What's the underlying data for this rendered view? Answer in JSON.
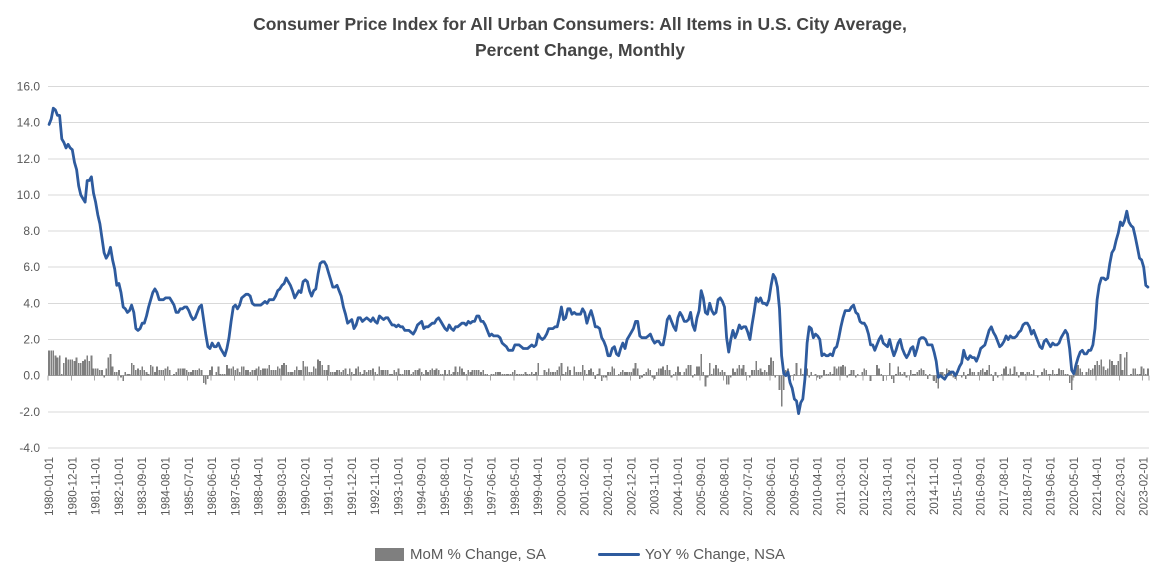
{
  "title": {
    "line1": "Consumer Price Index for All Urban Consumers: All Items in U.S. City Average,",
    "line2": "Percent Change, Monthly"
  },
  "legend": [
    {
      "label": "MoM % Change, SA",
      "swatch": "bar-swatch",
      "color": "#7f7f7f"
    },
    {
      "label": "YoY % Change, NSA",
      "swatch": "line-swatch",
      "color": "#2e5b9e"
    }
  ],
  "colors": {
    "bar": "#7f7f7f",
    "line": "#2e5b9e",
    "gridline": "#d9d9d9",
    "axis": "#a6a6a6",
    "axis_text": "#595959",
    "title_text": "#444444"
  },
  "chart_data": {
    "type": "combo",
    "title": "Consumer Price Index for All Urban Consumers: All Items in U.S. City Average, Percent Change, Monthly",
    "frequency": "monthly",
    "start": "1980-01-01",
    "end": "2023-04-01",
    "ylim": [
      -4,
      16
    ],
    "y_ticks": [
      16,
      14,
      12,
      10,
      8,
      6,
      4,
      2,
      0,
      -2,
      -4
    ],
    "grid": "horizontal",
    "legend_position": "bottom",
    "x_tick_interval_months": 11,
    "x_tick_labels": [
      "1980-01-01",
      "1980-12-01",
      "1981-11-01",
      "1982-10-01",
      "1983-09-01",
      "1984-08-01",
      "1985-07-01",
      "1986-06-01",
      "1987-05-01",
      "1988-04-01",
      "1989-03-01",
      "1990-02-01",
      "1991-01-01",
      "1991-12-01",
      "1992-11-01",
      "1993-10-01",
      "1994-09-01",
      "1995-08-01",
      "1996-07-01",
      "1997-06-01",
      "1998-05-01",
      "1999-04-01",
      "2000-03-01",
      "2001-02-01",
      "2002-01-01",
      "2002-12-01",
      "2003-11-01",
      "2004-10-01",
      "2005-09-01",
      "2006-08-01",
      "2007-07-01",
      "2008-06-01",
      "2009-05-01",
      "2010-04-01",
      "2011-03-01",
      "2012-02-01",
      "2013-01-01",
      "2013-12-01",
      "2014-11-01",
      "2015-10-01",
      "2016-09-01",
      "2017-08-01",
      "2018-07-01",
      "2019-06-01",
      "2020-05-01",
      "2021-04-01",
      "2022-03-01",
      "2023-02-01"
    ],
    "series": [
      {
        "name": "MoM % Change, SA",
        "type": "bar",
        "color": "#7f7f7f",
        "values": [
          1.4,
          1.4,
          1.4,
          1.1,
          1.0,
          1.1,
          0.1,
          0.7,
          1.0,
          0.9,
          0.9,
          0.9,
          0.8,
          1.0,
          0.7,
          0.7,
          0.8,
          0.9,
          1.1,
          0.8,
          1.1,
          0.4,
          0.4,
          0.4,
          0.3,
          0.3,
          -0.1,
          0.4,
          1.0,
          1.2,
          0.5,
          0.2,
          0.2,
          0.3,
          -0.1,
          -0.3,
          0.2,
          0.1,
          0.1,
          0.7,
          0.6,
          0.3,
          0.4,
          0.3,
          0.5,
          0.3,
          0.2,
          0.1,
          0.6,
          0.5,
          0.2,
          0.5,
          0.3,
          0.3,
          0.3,
          0.4,
          0.5,
          0.3,
          0.0,
          0.1,
          0.2,
          0.4,
          0.4,
          0.4,
          0.4,
          0.3,
          0.2,
          0.2,
          0.3,
          0.3,
          0.3,
          0.4,
          0.3,
          -0.4,
          -0.5,
          -0.2,
          0.3,
          0.5,
          0.0,
          0.2,
          0.5,
          0.1,
          0.1,
          0.1,
          0.6,
          0.4,
          0.4,
          0.5,
          0.3,
          0.4,
          0.2,
          0.5,
          0.5,
          0.3,
          0.3,
          0.2,
          0.3,
          0.3,
          0.4,
          0.5,
          0.3,
          0.4,
          0.4,
          0.4,
          0.6,
          0.3,
          0.3,
          0.3,
          0.5,
          0.4,
          0.6,
          0.7,
          0.6,
          0.2,
          0.2,
          0.2,
          0.3,
          0.5,
          0.3,
          0.3,
          0.8,
          0.5,
          0.5,
          0.2,
          0.2,
          0.5,
          0.4,
          0.9,
          0.8,
          0.6,
          0.3,
          0.3,
          0.6,
          0.2,
          0.2,
          0.2,
          0.3,
          0.3,
          0.2,
          0.3,
          0.4,
          0.1,
          0.4,
          0.2,
          0.1,
          0.4,
          0.5,
          0.2,
          0.1,
          0.3,
          0.2,
          0.3,
          0.3,
          0.4,
          0.2,
          0.1,
          0.5,
          0.3,
          0.3,
          0.3,
          0.3,
          0.1,
          0.1,
          0.3,
          0.2,
          0.4,
          0.1,
          0.1,
          0.3,
          0.3,
          0.3,
          0.1,
          0.2,
          0.3,
          0.3,
          0.4,
          0.2,
          0.1,
          0.3,
          0.2,
          0.3,
          0.4,
          0.3,
          0.4,
          0.3,
          0.1,
          0.1,
          0.3,
          0.1,
          0.3,
          0.1,
          0.2,
          0.5,
          0.2,
          0.5,
          0.4,
          0.2,
          0.1,
          0.3,
          0.2,
          0.3,
          0.3,
          0.3,
          0.3,
          0.2,
          0.3,
          0.1,
          0.1,
          0.0,
          0.1,
          0.1,
          0.2,
          0.2,
          0.2,
          0.1,
          0.1,
          0.1,
          0.1,
          0.1,
          0.2,
          0.3,
          0.1,
          0.1,
          0.1,
          0.1,
          0.2,
          0.1,
          0.1,
          0.2,
          0.1,
          0.2,
          0.7,
          0.0,
          0.0,
          0.3,
          0.2,
          0.4,
          0.2,
          0.2,
          0.2,
          0.3,
          0.5,
          0.7,
          0.1,
          0.2,
          0.5,
          0.3,
          0.0,
          0.5,
          0.2,
          0.2,
          0.2,
          0.6,
          0.3,
          0.1,
          0.3,
          0.4,
          0.2,
          -0.2,
          0.1,
          0.4,
          -0.3,
          -0.1,
          -0.1,
          0.2,
          0.2,
          0.5,
          0.4,
          0.0,
          0.1,
          0.2,
          0.3,
          0.2,
          0.2,
          0.2,
          0.2,
          0.4,
          0.7,
          0.4,
          -0.2,
          -0.1,
          0.1,
          0.2,
          0.4,
          0.3,
          -0.1,
          -0.2,
          0.2,
          0.4,
          0.4,
          0.5,
          0.3,
          0.6,
          0.3,
          -0.1,
          0.1,
          0.2,
          0.5,
          0.2,
          0.0,
          0.2,
          0.4,
          0.6,
          0.6,
          -0.1,
          0.1,
          0.5,
          0.5,
          1.2,
          0.2,
          -0.6,
          -0.1,
          0.7,
          0.1,
          0.4,
          0.6,
          0.4,
          0.2,
          0.3,
          0.2,
          -0.5,
          -0.5,
          -0.1,
          0.4,
          0.2,
          0.4,
          0.6,
          0.4,
          0.6,
          0.2,
          0.0,
          -0.1,
          0.3,
          0.3,
          0.8,
          0.3,
          0.4,
          0.2,
          0.3,
          0.2,
          0.6,
          1.0,
          0.8,
          -0.1,
          0.0,
          -0.8,
          -1.7,
          -0.8,
          0.3,
          0.4,
          -0.1,
          0.0,
          0.1,
          0.7,
          0.0,
          0.4,
          0.1,
          0.3,
          0.4,
          -0.1,
          0.2,
          0.0,
          0.1,
          -0.1,
          -0.2,
          -0.1,
          0.3,
          0.1,
          0.1,
          0.2,
          0.1,
          0.5,
          0.4,
          0.5,
          0.5,
          0.6,
          0.5,
          -0.1,
          0.1,
          0.3,
          0.3,
          -0.1,
          0.1,
          0.0,
          0.2,
          0.4,
          0.3,
          0.0,
          -0.3,
          0.0,
          0.0,
          0.6,
          0.4,
          0.1,
          -0.3,
          0.0,
          0.0,
          0.7,
          -0.2,
          -0.4,
          0.1,
          0.5,
          0.2,
          0.1,
          0.2,
          -0.1,
          0.0,
          0.3,
          0.1,
          0.1,
          0.2,
          0.3,
          0.4,
          0.3,
          0.1,
          -0.2,
          0.1,
          0.0,
          -0.3,
          -0.4,
          -0.7,
          0.2,
          0.2,
          0.1,
          0.4,
          0.3,
          0.2,
          -0.1,
          -0.2,
          0.2,
          0.0,
          -0.1,
          0.2,
          -0.2,
          0.1,
          0.4,
          0.2,
          0.2,
          0.0,
          0.2,
          0.3,
          0.4,
          0.2,
          0.3,
          0.6,
          0.1,
          -0.3,
          0.2,
          -0.1,
          0.0,
          0.1,
          0.4,
          0.5,
          0.1,
          0.4,
          0.1,
          0.5,
          0.2,
          -0.1,
          0.2,
          0.2,
          0.1,
          0.2,
          0.2,
          0.1,
          0.3,
          0.0,
          -0.1,
          0.0,
          0.2,
          0.4,
          0.3,
          0.1,
          0.1,
          0.3,
          0.1,
          0.1,
          0.4,
          0.3,
          0.3,
          0.1,
          0.1,
          -0.4,
          -0.8,
          -0.1,
          0.6,
          0.6,
          0.4,
          0.2,
          0.0,
          0.2,
          0.4,
          0.3,
          0.4,
          0.6,
          0.8,
          0.6,
          0.9,
          0.5,
          0.3,
          0.4,
          0.9,
          0.8,
          0.6,
          0.6,
          0.8,
          1.2,
          0.3,
          1.0,
          1.3,
          0.0,
          0.1,
          0.4,
          0.4,
          0.1,
          0.1,
          0.5,
          0.4,
          0.1,
          0.4
        ]
      },
      {
        "name": "YoY % Change, NSA",
        "type": "line",
        "color": "#2e5b9e",
        "values": [
          13.9,
          14.2,
          14.8,
          14.7,
          14.4,
          14.4,
          13.1,
          12.9,
          12.6,
          12.8,
          12.6,
          12.5,
          11.8,
          11.4,
          10.5,
          10.0,
          9.8,
          9.6,
          10.8,
          10.8,
          11.0,
          10.1,
          9.6,
          8.9,
          8.4,
          7.6,
          6.8,
          6.5,
          6.7,
          7.1,
          6.4,
          5.9,
          5.0,
          5.1,
          4.6,
          3.8,
          3.7,
          3.5,
          3.6,
          3.9,
          3.5,
          2.6,
          2.5,
          2.6,
          2.9,
          2.9,
          3.3,
          3.8,
          4.2,
          4.6,
          4.8,
          4.6,
          4.2,
          4.2,
          4.2,
          4.3,
          4.3,
          4.3,
          4.1,
          3.9,
          3.5,
          3.5,
          3.7,
          3.7,
          3.8,
          3.8,
          3.6,
          3.3,
          3.1,
          3.2,
          3.5,
          3.8,
          3.9,
          3.1,
          2.3,
          1.6,
          1.5,
          1.8,
          1.6,
          1.6,
          1.8,
          1.5,
          1.3,
          1.1,
          1.5,
          2.1,
          3.0,
          3.8,
          3.9,
          3.7,
          3.9,
          4.3,
          4.4,
          4.5,
          4.5,
          4.4,
          4.0,
          3.9,
          3.9,
          3.9,
          3.9,
          4.0,
          4.1,
          4.0,
          4.2,
          4.2,
          4.2,
          4.4,
          4.7,
          4.8,
          5.0,
          5.1,
          5.4,
          5.2,
          5.0,
          4.7,
          4.3,
          4.5,
          4.7,
          4.6,
          5.2,
          5.3,
          5.2,
          4.7,
          4.4,
          4.7,
          4.8,
          5.6,
          6.2,
          6.3,
          6.3,
          6.1,
          5.7,
          5.3,
          4.9,
          4.9,
          5.0,
          4.7,
          4.4,
          3.8,
          3.4,
          2.9,
          3.0,
          3.1,
          2.6,
          2.8,
          3.2,
          3.2,
          3.0,
          3.1,
          3.2,
          3.1,
          3.0,
          3.2,
          3.0,
          2.9,
          3.3,
          3.2,
          3.1,
          3.2,
          3.2,
          3.0,
          2.8,
          2.8,
          2.7,
          2.8,
          2.7,
          2.7,
          2.5,
          2.5,
          2.5,
          2.4,
          2.3,
          2.5,
          2.8,
          2.9,
          3.0,
          2.6,
          2.7,
          2.7,
          2.8,
          2.9,
          2.9,
          3.1,
          3.2,
          3.0,
          2.8,
          2.6,
          2.5,
          2.8,
          2.6,
          2.5,
          2.7,
          2.7,
          2.8,
          2.9,
          2.9,
          2.8,
          3.0,
          2.9,
          3.0,
          3.0,
          3.3,
          3.3,
          3.0,
          3.0,
          2.8,
          2.5,
          2.2,
          2.3,
          2.2,
          2.2,
          2.2,
          2.1,
          1.8,
          1.7,
          1.6,
          1.4,
          1.4,
          1.4,
          1.7,
          1.7,
          1.7,
          1.6,
          1.5,
          1.5,
          1.5,
          1.6,
          1.7,
          1.6,
          1.7,
          2.3,
          2.1,
          2.0,
          2.1,
          2.3,
          2.6,
          2.6,
          2.6,
          2.7,
          2.7,
          3.2,
          3.8,
          3.1,
          3.2,
          3.7,
          3.7,
          3.4,
          3.5,
          3.4,
          3.4,
          3.4,
          3.7,
          3.5,
          2.9,
          3.3,
          3.6,
          3.2,
          2.7,
          2.7,
          2.6,
          2.1,
          1.9,
          1.6,
          1.1,
          1.1,
          1.5,
          1.6,
          1.2,
          1.1,
          1.5,
          1.8,
          1.5,
          2.0,
          2.2,
          2.4,
          2.6,
          3.0,
          3.0,
          2.2,
          2.1,
          2.1,
          2.1,
          2.2,
          2.3,
          2.0,
          1.8,
          1.9,
          1.9,
          1.7,
          1.7,
          2.3,
          3.1,
          3.3,
          3.0,
          2.7,
          2.5,
          3.2,
          3.5,
          3.3,
          3.0,
          3.0,
          3.1,
          3.5,
          2.8,
          2.5,
          3.2,
          3.6,
          4.7,
          4.3,
          3.5,
          3.4,
          4.0,
          3.6,
          3.4,
          3.5,
          4.2,
          4.3,
          4.1,
          3.8,
          2.1,
          1.3,
          2.0,
          2.5,
          2.1,
          2.4,
          2.8,
          2.6,
          2.7,
          2.7,
          2.4,
          2.0,
          2.8,
          3.5,
          4.3,
          4.1,
          4.3,
          4.0,
          4.0,
          3.9,
          4.2,
          5.0,
          5.6,
          5.4,
          4.9,
          3.7,
          1.1,
          0.1,
          0.0,
          0.2,
          -0.4,
          -0.7,
          -1.3,
          -1.4,
          -2.1,
          -1.5,
          -1.3,
          -0.2,
          1.8,
          2.7,
          2.6,
          2.1,
          2.3,
          2.2,
          2.0,
          1.1,
          1.2,
          1.1,
          1.1,
          1.2,
          1.1,
          1.5,
          1.6,
          2.1,
          2.7,
          3.2,
          3.6,
          3.6,
          3.6,
          3.8,
          3.9,
          3.5,
          3.4,
          3.0,
          2.9,
          2.9,
          2.7,
          2.3,
          1.7,
          1.7,
          1.4,
          1.7,
          2.0,
          2.2,
          1.8,
          1.7,
          1.6,
          2.0,
          1.5,
          1.1,
          1.4,
          1.8,
          2.0,
          1.5,
          1.2,
          1.0,
          1.2,
          1.5,
          1.6,
          1.1,
          1.5,
          2.0,
          2.1,
          2.1,
          2.0,
          1.7,
          1.7,
          1.7,
          1.3,
          0.8,
          -0.1,
          0.0,
          -0.1,
          -0.2,
          0.0,
          0.1,
          0.2,
          0.2,
          0.0,
          0.2,
          0.5,
          0.7,
          1.4,
          1.0,
          0.9,
          1.1,
          1.0,
          1.0,
          0.8,
          1.1,
          1.5,
          1.6,
          1.7,
          2.1,
          2.5,
          2.7,
          2.4,
          2.2,
          1.9,
          1.6,
          1.7,
          1.9,
          2.2,
          2.0,
          2.2,
          2.1,
          2.1,
          2.2,
          2.4,
          2.5,
          2.8,
          2.9,
          2.9,
          2.7,
          2.3,
          2.5,
          2.2,
          1.9,
          1.6,
          1.5,
          1.9,
          2.0,
          1.8,
          1.6,
          1.8,
          1.7,
          1.7,
          1.8,
          2.1,
          2.3,
          2.5,
          2.3,
          1.5,
          0.3,
          0.1,
          0.6,
          1.0,
          1.3,
          1.4,
          1.2,
          1.2,
          1.4,
          1.4,
          1.7,
          2.6,
          4.2,
          5.0,
          5.4,
          5.4,
          5.3,
          5.4,
          6.2,
          6.8,
          7.0,
          7.5,
          7.9,
          8.5,
          8.3,
          8.6,
          9.1,
          8.5,
          8.3,
          8.2,
          7.7,
          7.1,
          6.5,
          6.4,
          6.0,
          5.0,
          4.9
        ]
      }
    ]
  }
}
